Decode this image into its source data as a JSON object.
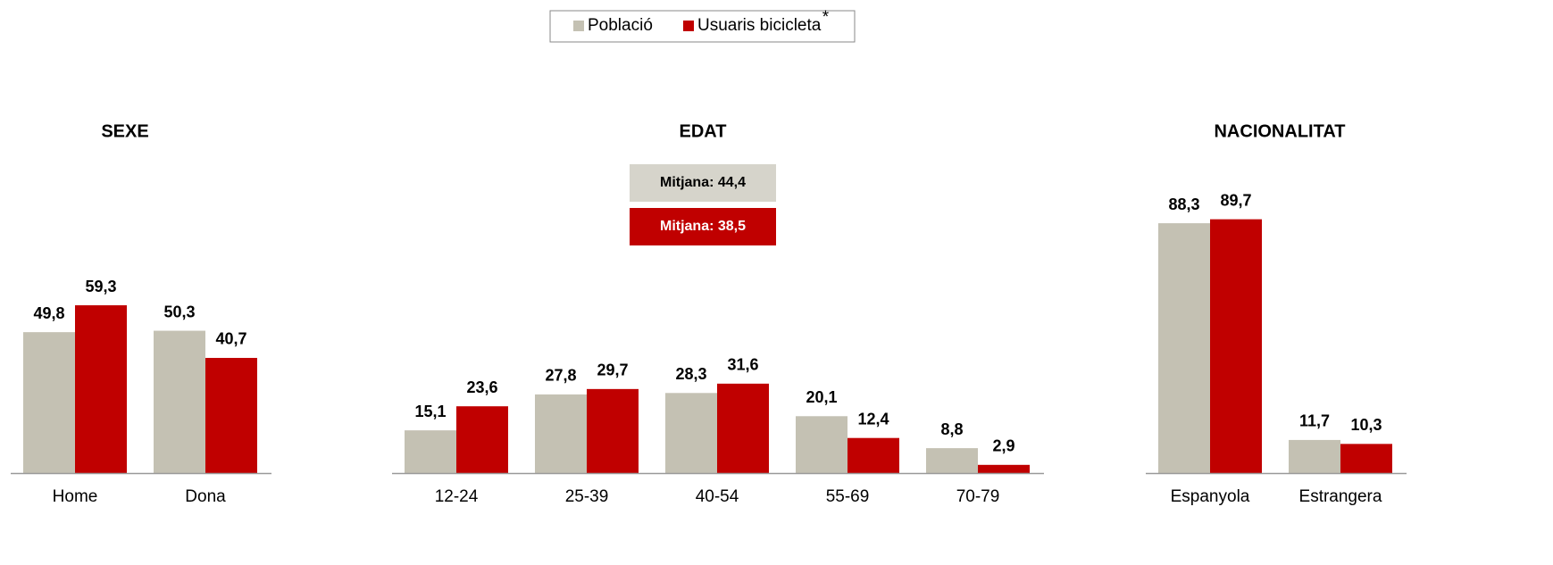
{
  "legend_note": "*",
  "chart_data": [
    {
      "type": "bar",
      "title": "SEXE",
      "categories": [
        "Home",
        "Dona"
      ],
      "series": [
        {
          "name": "Població",
          "color": "#c4c1b3",
          "values": [
            49.8,
            50.3
          ],
          "value_labels": [
            "49,8",
            "50,3"
          ]
        },
        {
          "name": "Usuaris bicicleta",
          "color": "#c00000",
          "values": [
            59.3,
            40.7
          ],
          "value_labels": [
            "59,3",
            "40,7"
          ]
        }
      ],
      "ylim": [
        0,
        100
      ]
    },
    {
      "type": "bar",
      "title": "EDAT",
      "categories": [
        "12-24",
        "25-39",
        "40-54",
        "55-69",
        "70-79"
      ],
      "series": [
        {
          "name": "Població",
          "color": "#c4c1b3",
          "values": [
            15.1,
            27.8,
            28.3,
            20.1,
            8.8
          ],
          "value_labels": [
            "15,1",
            "27,8",
            "28,3",
            "20,1",
            "8,8"
          ]
        },
        {
          "name": "Usuaris bicicleta",
          "color": "#c00000",
          "values": [
            23.6,
            29.7,
            31.6,
            12.4,
            2.9
          ],
          "value_labels": [
            "23,6",
            "29,7",
            "31,6",
            "12,4",
            "2,9"
          ]
        }
      ],
      "annotations": [
        "Mitjana: 44,4",
        "Mitjana: 38,5"
      ],
      "ylim": [
        0,
        100
      ]
    },
    {
      "type": "bar",
      "title": "NACIONALITAT",
      "categories": [
        "Espanyola",
        "Estrangera"
      ],
      "series": [
        {
          "name": "Població",
          "color": "#c4c1b3",
          "values": [
            88.3,
            11.7
          ],
          "value_labels": [
            "88,3",
            "11,7"
          ]
        },
        {
          "name": "Usuaris bicicleta",
          "color": "#c00000",
          "values": [
            89.7,
            10.3
          ],
          "value_labels": [
            "89,7",
            "10,3"
          ]
        }
      ],
      "ylim": [
        0,
        100
      ]
    }
  ]
}
